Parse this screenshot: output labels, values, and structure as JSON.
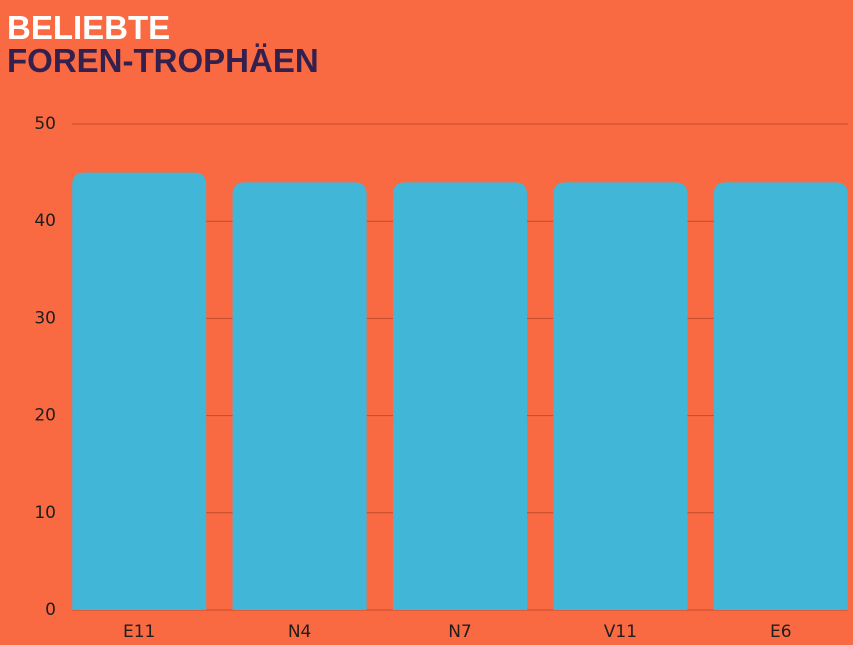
{
  "chart_data": {
    "type": "bar",
    "title": "BELIEBTE",
    "subtitle": "FOREN-TROPHÄEN",
    "categories": [
      "E11",
      "N4",
      "N7",
      "V11",
      "E6"
    ],
    "values": [
      45,
      44,
      44,
      44,
      44
    ],
    "color": "#41b6d6",
    "ylim": [
      0,
      50
    ],
    "yticks": [
      0,
      10,
      20,
      30,
      40,
      50
    ],
    "grid": true
  }
}
